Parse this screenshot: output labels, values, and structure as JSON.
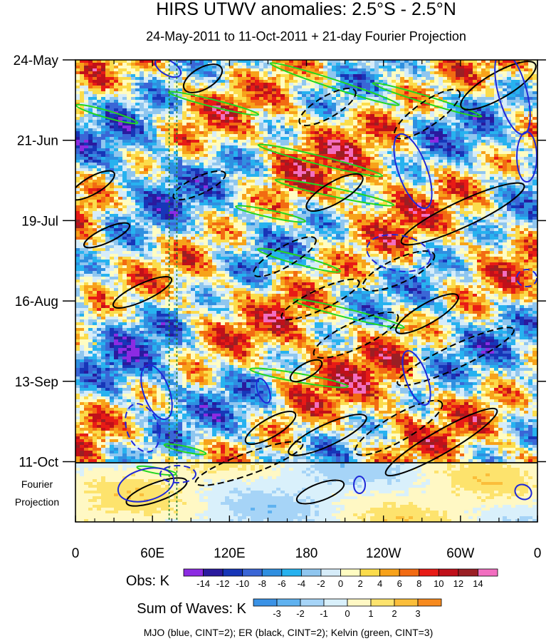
{
  "chart_data": {
    "type": "heatmap",
    "title": "HIRS UTWV anomalies: 2.5°S - 2.5°N",
    "subtitle": "24-May-2011 to 11-Oct-2011 + 21-day Fourier Projection",
    "x_axis": {
      "label": "",
      "tick_labels": [
        "0",
        "60E",
        "120E",
        "180",
        "120W",
        "60W",
        "0"
      ],
      "tick_values_deg_east": [
        0,
        60,
        120,
        180,
        240,
        300,
        360
      ],
      "range_deg_east": [
        0,
        360
      ]
    },
    "y_axis": {
      "label": "",
      "tick_labels": [
        "24-May",
        "21-Jun",
        "19-Jul",
        "16-Aug",
        "13-Sep",
        "11-Oct"
      ],
      "tick_days_since_start": [
        0,
        28,
        56,
        84,
        112,
        140
      ],
      "range_days": [
        0,
        161
      ],
      "projection_label": "Fourier\nProjection",
      "projection_start_day": 140,
      "projection_length_days": 21
    },
    "colorbars": [
      {
        "label": "Obs: K",
        "levels": [
          -14,
          -12,
          -10,
          -8,
          -6,
          -4,
          -2,
          0,
          2,
          4,
          6,
          8,
          10,
          12,
          14
        ],
        "colors": [
          "#8c2be2",
          "#2a1a9e",
          "#1736b8",
          "#3a66d6",
          "#2f8fe0",
          "#27b2ef",
          "#8fc6ef",
          "#d6ecf9",
          "#fffcc2",
          "#fbdc4b",
          "#f7a21a",
          "#f26b12",
          "#e81b16",
          "#c0101a",
          "#9a1f24",
          "#f26ec0"
        ]
      },
      {
        "label": "Sum of Waves: K",
        "levels": [
          -3,
          -2,
          -1,
          0,
          1,
          2,
          3
        ],
        "colors": [
          "#3a92e6",
          "#5fb2f0",
          "#a6d4f7",
          "#d9f0fb",
          "#fff8c4",
          "#fde36d",
          "#fbbe3a",
          "#f78a1e"
        ]
      }
    ],
    "wave_contours": [
      {
        "name": "MJO",
        "color": "blue",
        "cint": 2
      },
      {
        "name": "ER",
        "color": "black",
        "cint": 2
      },
      {
        "name": "Kelvin",
        "color": "green",
        "cint": 3
      }
    ],
    "reference_lines_deg_east": [
      73,
      79
    ],
    "footnote": "MJO (blue, CINT=2); ER (black, CINT=2); Kelvin (green, CINT=3)"
  },
  "colors": {
    "mjo": "#1f28d8",
    "er": "#000000",
    "kelvin": "#22d61f",
    "reference": "#1f7a2a"
  }
}
